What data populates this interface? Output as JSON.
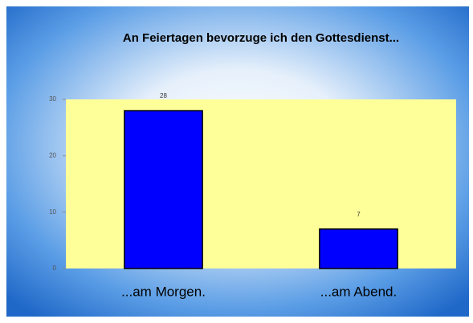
{
  "chart_data": {
    "type": "bar",
    "title": "An Feiertagen bevorzuge ich  den Gottesdienst...",
    "categories": [
      "...am Morgen.",
      "...am Abend."
    ],
    "values": [
      28,
      7
    ],
    "color": "#0000ff",
    "ylim": [
      0,
      30
    ],
    "yticks": [
      0,
      10,
      20,
      30
    ]
  }
}
